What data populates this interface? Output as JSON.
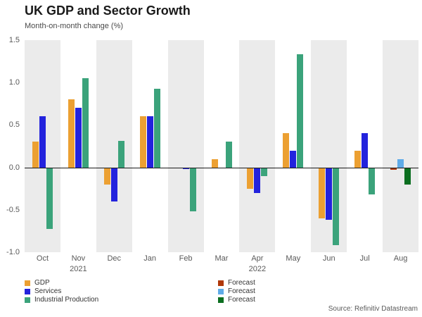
{
  "title": "UK GDP and Sector Growth",
  "subtitle": "Month-on-month change (%)",
  "source": "Source: Refinitiv Datastream",
  "colors": {
    "gdp": "#ECA032",
    "services": "#2323DD",
    "industrial_production": "#3BA37B",
    "forecast_gdp": "#B0380A",
    "forecast_services": "#5FABE8",
    "forecast_industrial": "#0B6E1F",
    "band": "#EBEBEB",
    "zero_line": "#1a1a1a"
  },
  "legend": {
    "left": [
      {
        "label": "GDP",
        "color": "#ECA032"
      },
      {
        "label": "Services",
        "color": "#2323DD"
      },
      {
        "label": "Industrial Production",
        "color": "#3BA37B"
      }
    ],
    "right": [
      {
        "label": "Forecast",
        "color": "#B0380A"
      },
      {
        "label": "Forecast",
        "color": "#5FABE8"
      },
      {
        "label": "Forecast",
        "color": "#0B6E1F"
      }
    ]
  },
  "chart_data": {
    "type": "bar",
    "title": "UK GDP and Sector Growth",
    "subtitle": "Month-on-month change (%)",
    "categories": [
      "Oct",
      "Nov",
      "Dec",
      "Jan",
      "Feb",
      "Mar",
      "Apr",
      "May",
      "Jun",
      "Jul",
      "Aug"
    ],
    "year_labels": [
      {
        "label": "2021",
        "index": 1
      },
      {
        "label": "2022",
        "index": 6
      }
    ],
    "ylim": [
      -1.0,
      1.5
    ],
    "yticks": [
      {
        "label": "1.5",
        "value": 1.5
      },
      {
        "label": "1.0",
        "value": 1.0
      },
      {
        "label": "0.5",
        "value": 0.5
      },
      {
        "label": "0.0",
        "value": 0.0
      },
      {
        "label": "-0.5",
        "value": -0.5
      },
      {
        "label": "-1.0",
        "value": -1.0
      }
    ],
    "grid": "alternating-vertical-bands",
    "legend_position": "bottom-left",
    "series": [
      {
        "name": "GDP",
        "color": "#ECA032",
        "values": [
          0.3,
          0.8,
          -0.2,
          0.6,
          0.0,
          0.1,
          -0.25,
          0.4,
          -0.6,
          0.2,
          null
        ]
      },
      {
        "name": "Services",
        "color": "#2323DD",
        "values": [
          0.6,
          0.7,
          -0.4,
          0.6,
          -0.02,
          0.0,
          -0.3,
          0.2,
          -0.62,
          0.4,
          null
        ]
      },
      {
        "name": "Industrial Production",
        "color": "#3BA37B",
        "values": [
          -0.73,
          1.05,
          0.31,
          0.93,
          -0.52,
          0.3,
          -0.1,
          1.33,
          -0.92,
          -0.32,
          null
        ]
      }
    ],
    "forecast": {
      "month": "Aug",
      "values": [
        {
          "name": "Forecast GDP",
          "color": "#B0380A",
          "value": -0.03
        },
        {
          "name": "Forecast Services",
          "color": "#5FABE8",
          "value": 0.1
        },
        {
          "name": "Forecast Industrial Production",
          "color": "#0B6E1F",
          "value": -0.2
        }
      ]
    },
    "band_colors": [
      "#EBEBEB",
      "#FFFFFF"
    ]
  }
}
